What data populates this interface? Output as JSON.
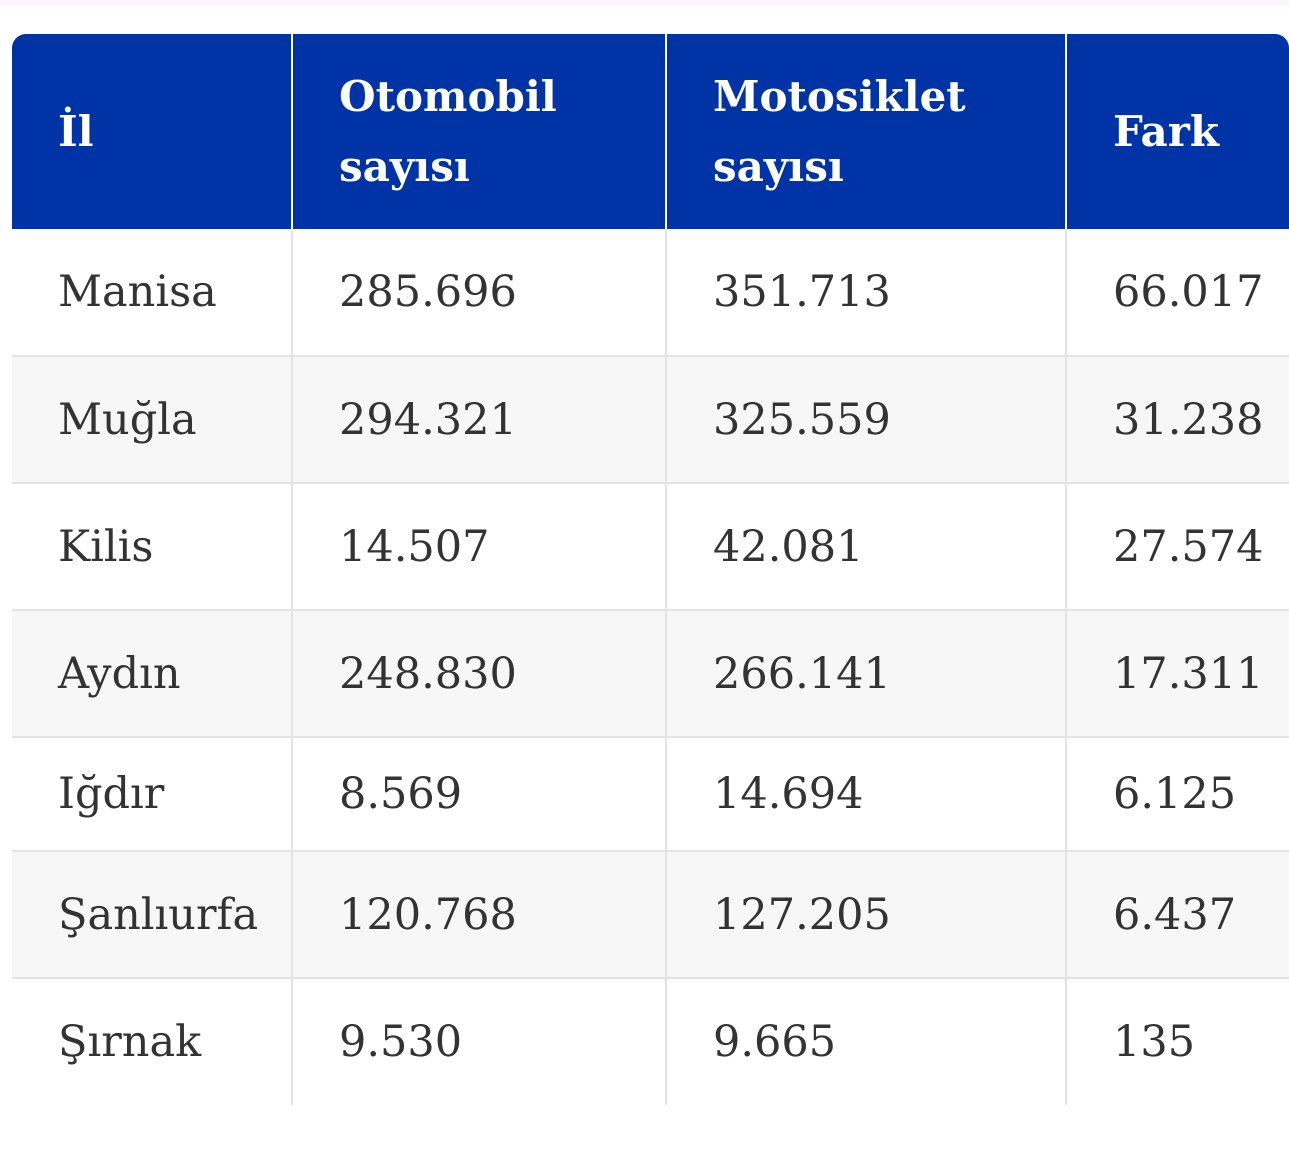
{
  "table": {
    "headers": {
      "il": "İl",
      "otomobil_line1": "Otomobil",
      "otomobil_line2": "sayısı",
      "motosiklet_line1": "Motosiklet",
      "motosiklet_line2": "sayısı",
      "fark": "Fark"
    },
    "rows": [
      {
        "il": "Manisa",
        "otomobil": "285.696",
        "motosiklet": "351.713",
        "fark": "66.017"
      },
      {
        "il": "Muğla",
        "otomobil": "294.321",
        "motosiklet": "325.559",
        "fark": "31.238"
      },
      {
        "il": "Kilis",
        "otomobil": "14.507",
        "motosiklet": "42.081",
        "fark": "27.574"
      },
      {
        "il": "Aydın",
        "otomobil": "248.830",
        "motosiklet": "266.141",
        "fark": "17.311"
      },
      {
        "il": "Iğdır",
        "otomobil": "8.569",
        "motosiklet": "14.694",
        "fark": "6.125"
      },
      {
        "il": "Şanlıurfa",
        "otomobil": "120.768",
        "motosiklet": "127.205",
        "fark": "6.437"
      },
      {
        "il": "Şırnak",
        "otomobil": "9.530",
        "motosiklet": "9.665",
        "fark": "135"
      }
    ]
  },
  "colors": {
    "header_bg": "#0033a5",
    "header_text": "#ffffff",
    "row_alt_bg": "#f7f7f7",
    "cell_text": "#333333",
    "border": "#e3e3e3"
  }
}
